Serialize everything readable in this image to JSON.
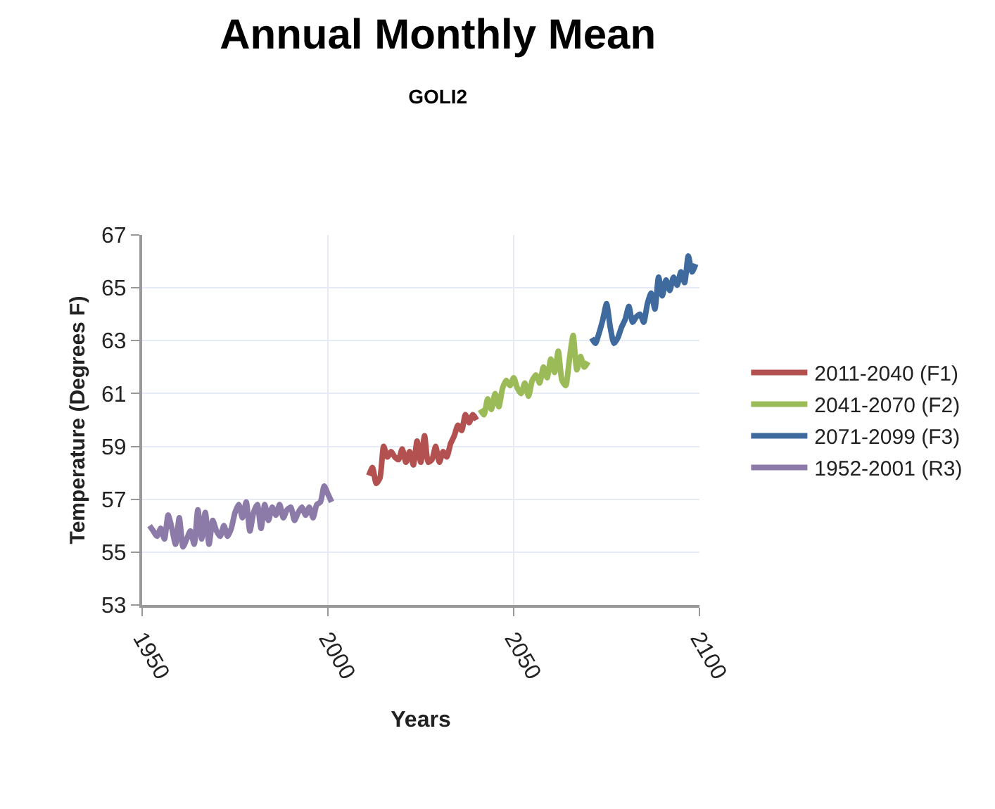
{
  "chart_data": {
    "type": "line",
    "title": "Annual Monthly Mean",
    "subtitle": "GOLI2",
    "xlabel": "Years",
    "ylabel": "Temperature (Degrees F)",
    "xlim": [
      1950,
      2100
    ],
    "xticks": [
      1950,
      2000,
      2050,
      2100
    ],
    "ylim": [
      53,
      67
    ],
    "yticks": [
      53,
      55,
      57,
      59,
      61,
      63,
      65,
      67
    ],
    "grid": true,
    "legend": "right",
    "marker": "none",
    "line_style": "solid",
    "series": [
      {
        "name": "2011-2040 (F1)",
        "color": "#b2514f",
        "x": [
          2011,
          2012,
          2013,
          2014,
          2015,
          2016,
          2017,
          2018,
          2019,
          2020,
          2021,
          2022,
          2023,
          2024,
          2025,
          2026,
          2027,
          2028,
          2029,
          2030,
          2031,
          2032,
          2033,
          2034,
          2035,
          2036,
          2037,
          2038,
          2039,
          2040
        ],
        "values": [
          57.9,
          58.2,
          57.6,
          57.8,
          59.0,
          58.6,
          58.8,
          58.6,
          58.5,
          58.9,
          58.4,
          58.8,
          58.3,
          59.2,
          58.4,
          59.4,
          58.4,
          58.5,
          59.0,
          58.4,
          58.8,
          58.6,
          59.1,
          59.4,
          59.8,
          59.6,
          60.2,
          59.9,
          60.2,
          60.0
        ]
      },
      {
        "name": "2041-2070 (F2)",
        "color": "#9bbb59",
        "x": [
          2041,
          2042,
          2043,
          2044,
          2045,
          2046,
          2047,
          2048,
          2049,
          2050,
          2051,
          2052,
          2053,
          2054,
          2055,
          2056,
          2057,
          2058,
          2059,
          2060,
          2061,
          2062,
          2063,
          2064,
          2065,
          2066,
          2067,
          2068,
          2069,
          2070
        ],
        "values": [
          60.4,
          60.2,
          60.8,
          60.4,
          61.0,
          60.5,
          61.2,
          61.5,
          61.3,
          61.6,
          61.2,
          61.0,
          61.4,
          60.9,
          61.5,
          61.7,
          61.4,
          62.0,
          61.6,
          62.3,
          61.8,
          62.6,
          61.5,
          61.3,
          62.3,
          63.2,
          61.9,
          62.4,
          62.0,
          62.2
        ]
      },
      {
        "name": "2071-2099 (F3)",
        "color": "#3f6a9e",
        "x": [
          2071,
          2072,
          2073,
          2074,
          2075,
          2076,
          2077,
          2078,
          2079,
          2080,
          2081,
          2082,
          2083,
          2084,
          2085,
          2086,
          2087,
          2088,
          2089,
          2090,
          2091,
          2092,
          2093,
          2094,
          2095,
          2096,
          2097,
          2098,
          2099
        ],
        "values": [
          63.1,
          62.9,
          63.3,
          63.8,
          64.4,
          63.5,
          62.9,
          63.1,
          63.5,
          63.8,
          64.3,
          63.7,
          63.9,
          64.0,
          63.7,
          64.4,
          64.8,
          64.2,
          65.4,
          64.7,
          65.3,
          64.9,
          65.4,
          65.1,
          65.6,
          65.2,
          66.2,
          65.6,
          65.9
        ]
      },
      {
        "name": "1952-2001 (R3)",
        "color": "#8c7aa9",
        "x": [
          1952,
          1953,
          1954,
          1955,
          1956,
          1957,
          1958,
          1959,
          1960,
          1961,
          1962,
          1963,
          1964,
          1965,
          1966,
          1967,
          1968,
          1969,
          1970,
          1971,
          1972,
          1973,
          1974,
          1975,
          1976,
          1977,
          1978,
          1979,
          1980,
          1981,
          1982,
          1983,
          1984,
          1985,
          1986,
          1987,
          1988,
          1989,
          1990,
          1991,
          1992,
          1993,
          1994,
          1995,
          1996,
          1997,
          1998,
          1999,
          2000,
          2001
        ],
        "values": [
          56.0,
          55.8,
          55.6,
          55.9,
          55.5,
          56.4,
          55.9,
          55.3,
          56.3,
          55.2,
          55.5,
          55.8,
          55.3,
          56.6,
          55.5,
          56.5,
          55.3,
          56.2,
          55.8,
          55.6,
          56.0,
          55.6,
          55.9,
          56.5,
          56.8,
          56.3,
          56.9,
          55.8,
          56.5,
          56.8,
          55.9,
          56.8,
          56.2,
          56.7,
          56.4,
          56.8,
          56.3,
          56.6,
          56.7,
          56.2,
          56.5,
          56.7,
          56.4,
          56.7,
          56.3,
          56.8,
          56.9,
          57.5,
          57.2,
          56.9
        ]
      }
    ]
  }
}
